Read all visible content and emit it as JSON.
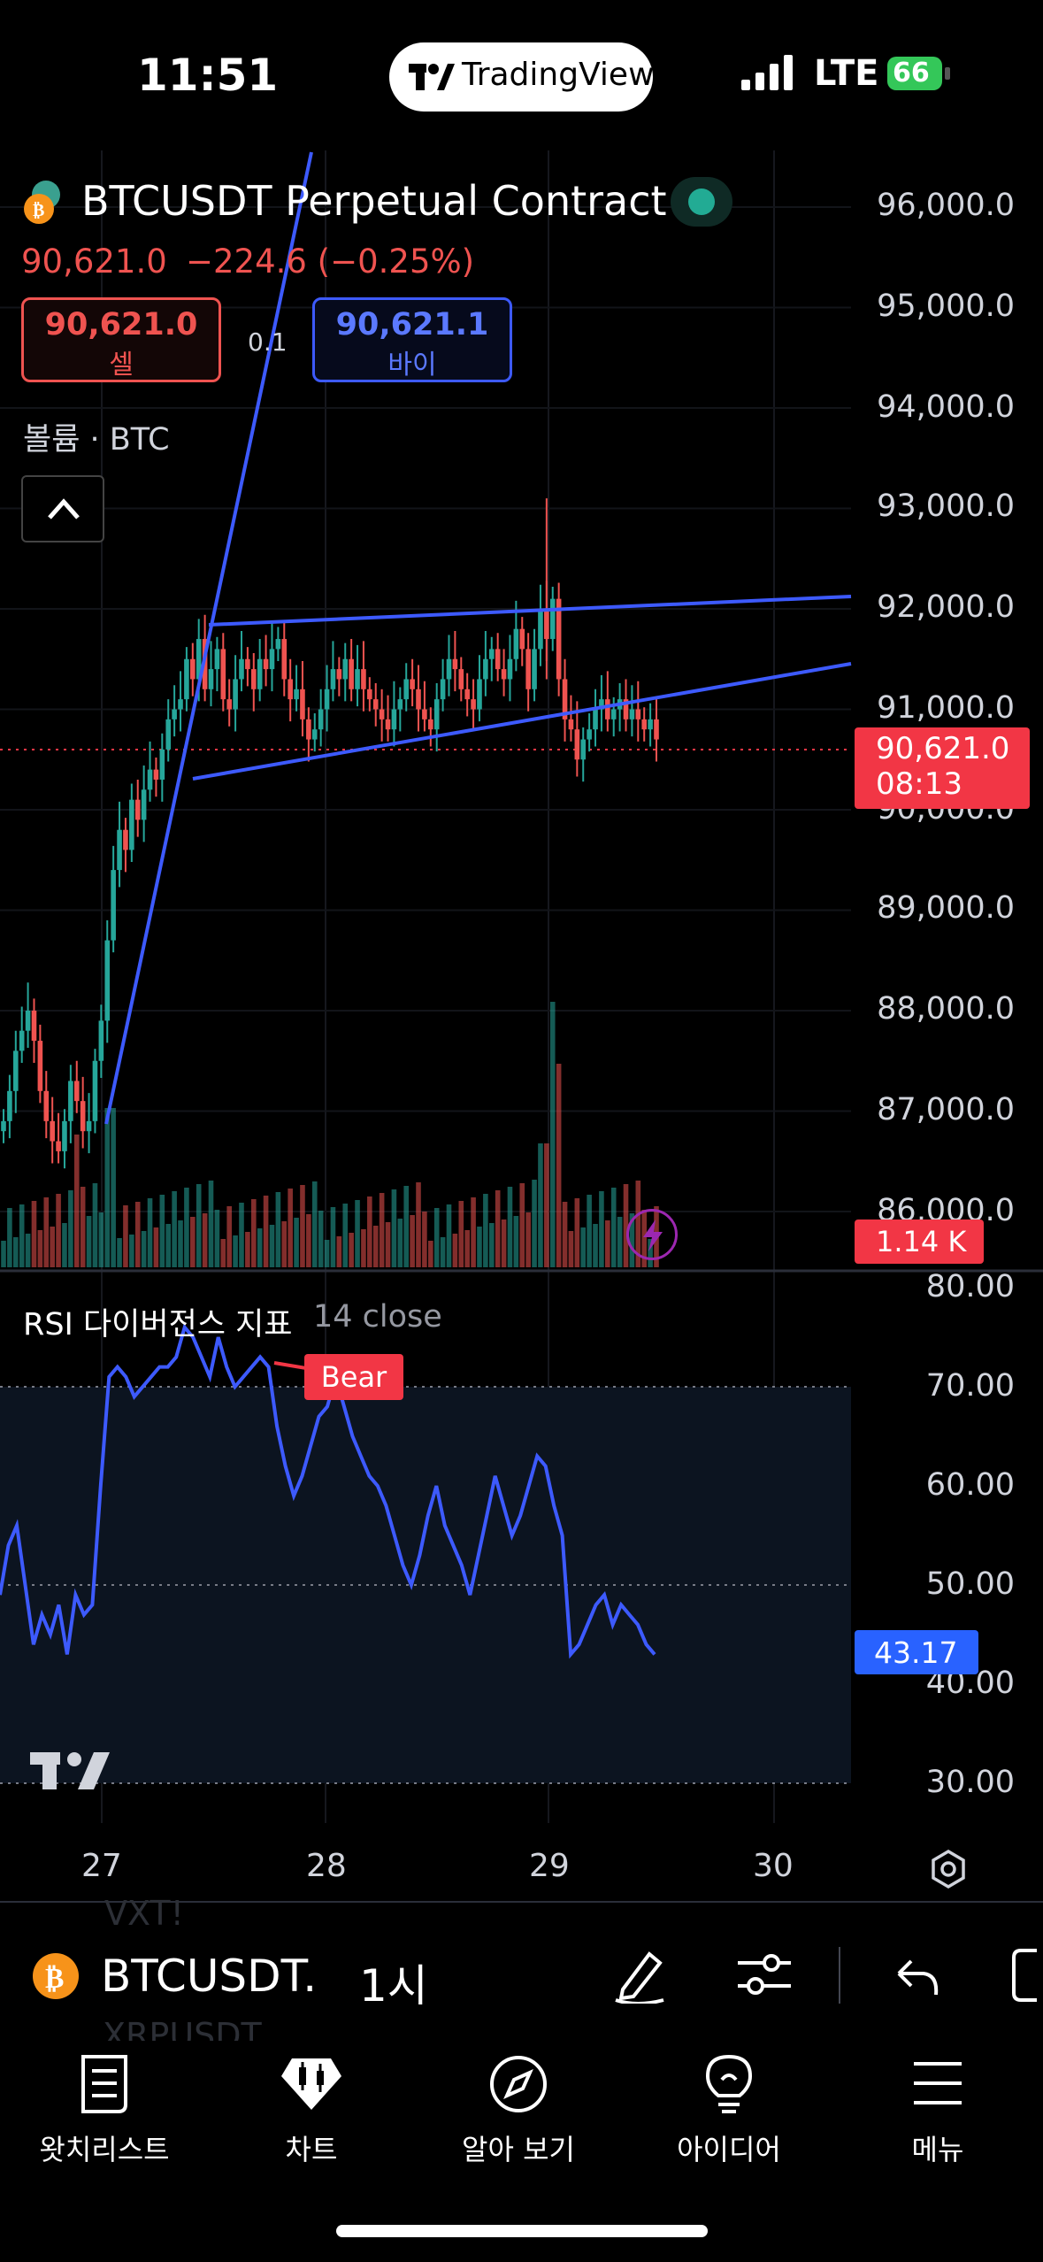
{
  "status": {
    "time": "11:51",
    "app_pill": "TradingView",
    "network": "LTE",
    "battery": "66"
  },
  "symbol": {
    "name": "BTCUSDT Perpetual Contract",
    "price": "90,621.0",
    "change": "−224.6 (−0.25%)",
    "sell_price": "90,621.0",
    "sell_label": "셀",
    "spread": "0.1",
    "buy_price": "90,621.1",
    "buy_label": "바이",
    "volume_label": "볼륨 · BTC"
  },
  "price_axis": [
    "96,000.0",
    "95,000.0",
    "94,000.0",
    "93,000.0",
    "92,000.0",
    "91,000.0",
    "90,000.0",
    "89,000.0",
    "88,000.0",
    "87,000.0",
    "86,000.0"
  ],
  "last_price_badge": {
    "price": "90,621.0",
    "countdown": "08:13"
  },
  "volume_badge": "1.14 K",
  "rsi": {
    "title": "RSI 다이버전스 지표",
    "params": "14 close",
    "axis": [
      "80.00",
      "70.00",
      "60.00",
      "50.00",
      "40.00",
      "30.00"
    ],
    "value": "43.17",
    "bear_label": "Bear"
  },
  "date_axis": [
    "27",
    "28",
    "29",
    "30"
  ],
  "bottom_toolbar": {
    "symbol": "BTCUSDT.",
    "interval": "1시",
    "ghost_top": "VXT!",
    "ghost_bottom": "XRPUSDT"
  },
  "nav": {
    "watchlist": "왓치리스트",
    "chart": "차트",
    "explore": "알아 보기",
    "ideas": "아이디어",
    "menu": "메뉴"
  },
  "colors": {
    "up": "#26a69a",
    "down": "#ef5350",
    "line": "#3d5afe",
    "bg": "#000000"
  }
}
